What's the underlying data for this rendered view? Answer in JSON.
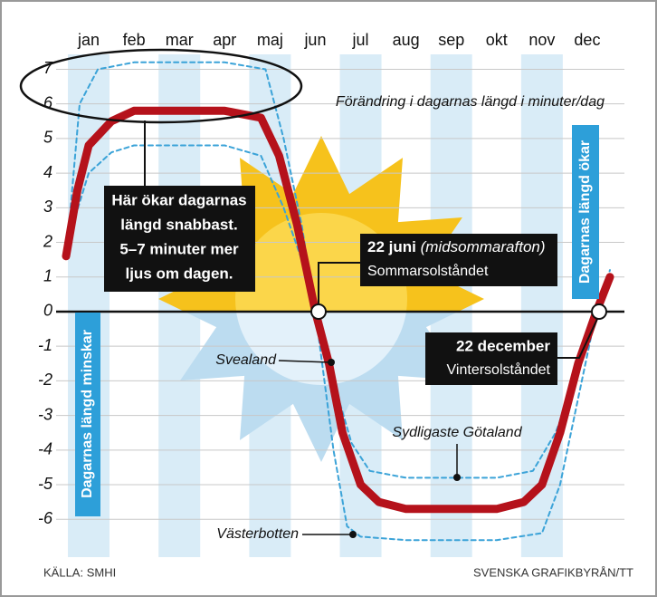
{
  "chart_data": {
    "type": "line",
    "subtitle": "Förändring i dagarnas längd i minuter/dag",
    "xlim": [
      0.4,
      12.6
    ],
    "xticks": [
      {
        "value": 1,
        "label": "jan"
      },
      {
        "value": 2,
        "label": "feb"
      },
      {
        "value": 3,
        "label": "mar"
      },
      {
        "value": 4,
        "label": "apr"
      },
      {
        "value": 5,
        "label": "maj"
      },
      {
        "value": 6,
        "label": "jun"
      },
      {
        "value": 7,
        "label": "jul"
      },
      {
        "value": 8,
        "label": "aug"
      },
      {
        "value": 9,
        "label": "sep"
      },
      {
        "value": 10,
        "label": "okt"
      },
      {
        "value": 11,
        "label": "nov"
      },
      {
        "value": 12,
        "label": "dec"
      }
    ],
    "ylim": [
      -6.7,
      7.3
    ],
    "yticks": [
      -6,
      -5,
      -4,
      -3,
      -2,
      -1,
      0,
      1,
      2,
      3,
      4,
      5,
      6,
      7
    ],
    "grid": true,
    "series": [
      {
        "name": "Svealand",
        "color": "#b5121b",
        "line_style": "solid",
        "x": [
          0.5,
          0.75,
          1,
          1.5,
          2,
          3,
          4,
          4.8,
          5.2,
          5.6,
          6,
          6.3,
          6.6,
          7,
          7.4,
          8,
          9,
          10,
          10.6,
          11,
          11.4,
          11.8,
          12.2,
          12.5
        ],
        "values": [
          1.6,
          3.5,
          4.8,
          5.5,
          5.8,
          5.8,
          5.8,
          5.6,
          4.5,
          2.5,
          0,
          -1.5,
          -3.5,
          -5.0,
          -5.5,
          -5.7,
          -5.7,
          -5.7,
          -5.5,
          -5.0,
          -3.5,
          -1.5,
          0,
          1.0
        ]
      },
      {
        "name": "Sydligaste Götaland",
        "color": "#3ba3d8",
        "line_style": "dashed",
        "x": [
          0.6,
          1,
          1.5,
          2,
          4,
          4.8,
          5.3,
          5.7,
          6,
          6.4,
          6.8,
          7.2,
          8,
          10,
          10.8,
          11.3,
          11.8,
          12.2,
          12.5
        ],
        "values": [
          2.3,
          4.0,
          4.6,
          4.8,
          4.8,
          4.5,
          3.0,
          1.5,
          0,
          -2.0,
          -3.8,
          -4.6,
          -4.8,
          -4.8,
          -4.6,
          -3.5,
          -1.8,
          0,
          1.0
        ]
      },
      {
        "name": "Västerbotten",
        "color": "#3ba3d8",
        "line_style": "dashed",
        "x": [
          0.6,
          0.8,
          1.2,
          2,
          4,
          4.9,
          5.3,
          5.7,
          6,
          6.4,
          6.7,
          7,
          8,
          10,
          11,
          11.4,
          11.8,
          12.2,
          12.5
        ],
        "values": [
          3.0,
          6.0,
          7.0,
          7.2,
          7.2,
          7.0,
          5.0,
          2.5,
          0,
          -4.0,
          -6.2,
          -6.5,
          -6.6,
          -6.6,
          -6.4,
          -5.0,
          -2.5,
          0,
          1.2
        ]
      }
    ],
    "callout_lines": [
      "Här ökar dagarnas",
      "längd snabbast.",
      "5–7 minuter mer",
      "ljus om dagen."
    ],
    "summer_solstice": {
      "date": "22 juni",
      "note": "(midsommarafton)",
      "label": "Sommarsolståndet"
    },
    "winter_solstice": {
      "date": "22 december",
      "label": "Vintersolståndet"
    },
    "left_band_label": "Dagarnas längd minskar",
    "right_band_label": "Dagarnas längd ökar",
    "source": "KÄLLA: SMHI",
    "credit": "SVENSKA GRAFIKBYRÅN/TT"
  }
}
